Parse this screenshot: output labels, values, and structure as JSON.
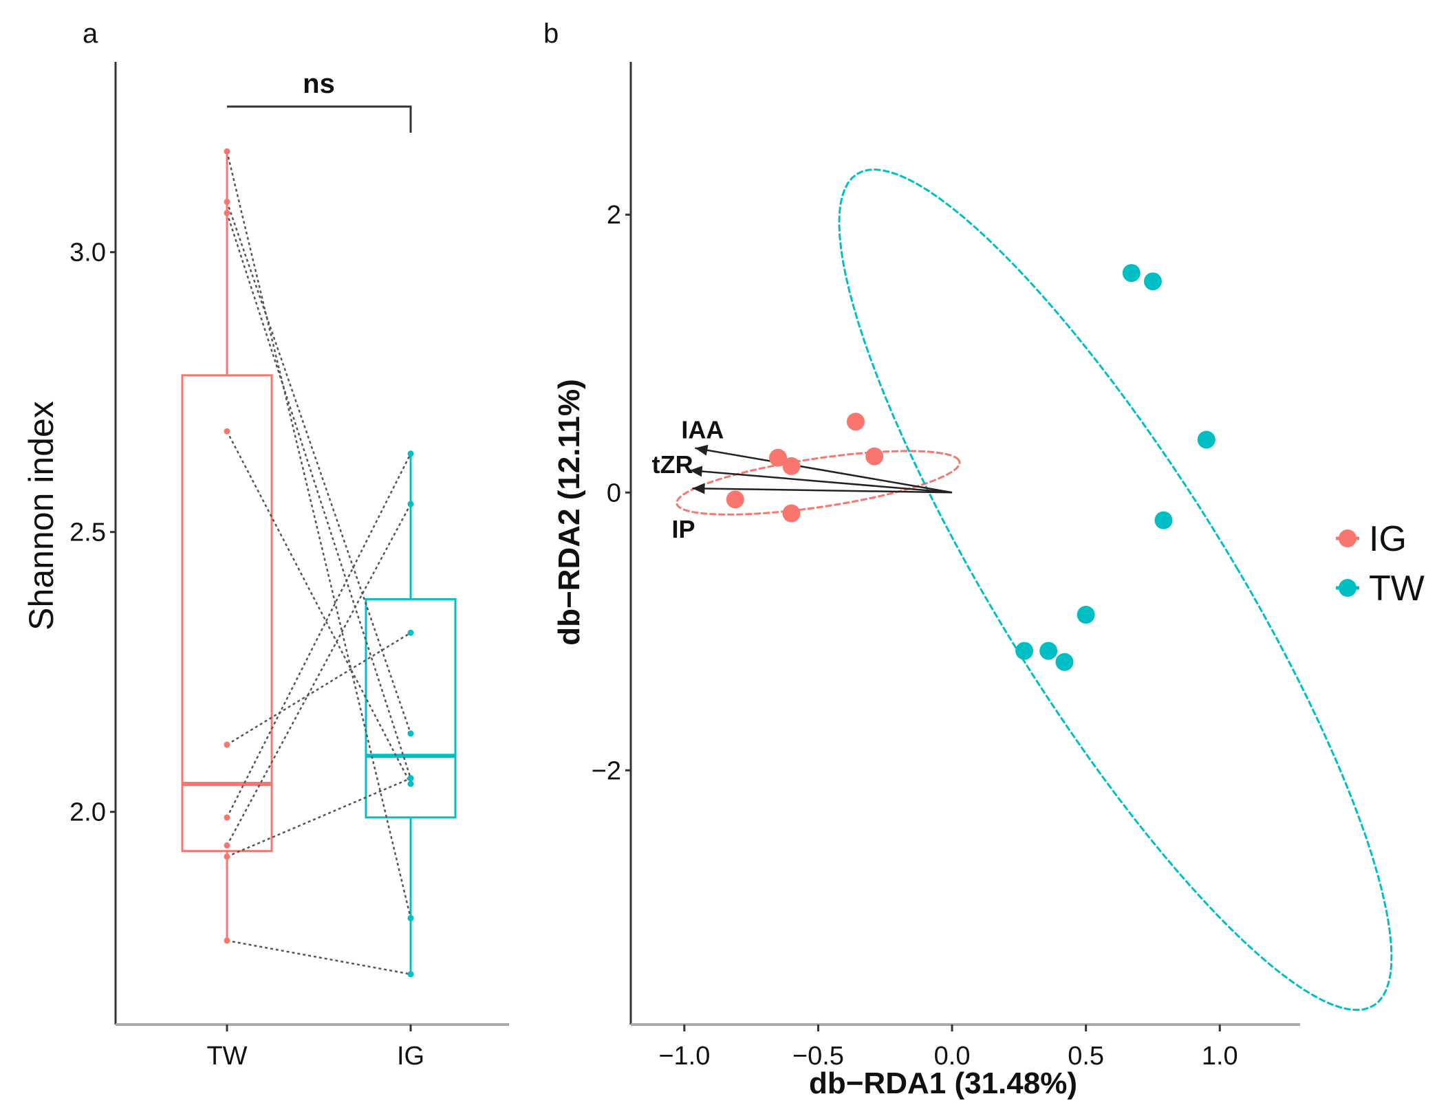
{
  "chart_data": [
    {
      "panel": "a",
      "type": "box",
      "title": "",
      "xlabel": "",
      "ylabel": "Shannon index",
      "categories": [
        "TW",
        "IG"
      ],
      "ylim": [
        1.62,
        3.34
      ],
      "yticks": [
        2.0,
        2.5,
        3.0
      ],
      "ytick_labels": [
        "2.0",
        "2.5",
        "3.0"
      ],
      "boxes": [
        {
          "group": "TW",
          "color": "#F8766D",
          "q1": 1.93,
          "median": 2.05,
          "q3": 2.78,
          "whisker_low": 1.77,
          "whisker_high": 3.18
        },
        {
          "group": "IG",
          "color": "#00BFC4",
          "q1": 1.99,
          "median": 2.1,
          "q3": 2.38,
          "whisker_low": 1.71,
          "whisker_high": 2.64
        }
      ],
      "paired_points": [
        {
          "TW": 3.18,
          "IG": 1.81
        },
        {
          "TW": 3.09,
          "IG": 2.14
        },
        {
          "TW": 3.07,
          "IG": 2.06
        },
        {
          "TW": 2.68,
          "IG": 2.05
        },
        {
          "TW": 2.12,
          "IG": 2.32
        },
        {
          "TW": 1.99,
          "IG": 2.64
        },
        {
          "TW": 1.94,
          "IG": 2.55
        },
        {
          "TW": 1.92,
          "IG": 2.06
        },
        {
          "TW": 1.77,
          "IG": 1.71
        }
      ],
      "significance": {
        "label": "ns",
        "between": [
          "TW",
          "IG"
        ]
      }
    },
    {
      "panel": "b",
      "type": "scatter",
      "title": "",
      "xlabel": "db−RDA1 (31.48%)",
      "ylabel": "db−RDA2 (12.11%)",
      "xlim": [
        -1.2,
        1.3
      ],
      "ylim": [
        -3.83,
        3.1
      ],
      "xticks": [
        -1.0,
        -0.5,
        0.0,
        0.5,
        1.0
      ],
      "xtick_labels": [
        "−1.0",
        "−0.5",
        "0.0",
        "0.5",
        "1.0"
      ],
      "yticks": [
        -2,
        0,
        2
      ],
      "ytick_labels": [
        "−2",
        "0",
        "2"
      ],
      "series": [
        {
          "name": "IG",
          "color": "#F8766D",
          "points": [
            [
              -0.36,
              0.51
            ],
            [
              -0.29,
              0.26
            ],
            [
              -0.65,
              0.25
            ],
            [
              -0.6,
              0.19
            ],
            [
              -0.81,
              -0.05
            ],
            [
              -0.6,
              -0.15
            ]
          ],
          "ellipse": {
            "cx": -0.5,
            "cy": 0.07,
            "rx": 0.55,
            "ry": 0.17,
            "angle_deg": 17
          }
        },
        {
          "name": "TW",
          "color": "#00BFC4",
          "points": [
            [
              0.67,
              1.58
            ],
            [
              0.75,
              1.52
            ],
            [
              0.95,
              0.38
            ],
            [
              0.79,
              -0.2
            ],
            [
              0.5,
              -0.88
            ],
            [
              0.27,
              -1.14
            ],
            [
              0.36,
              -1.14
            ],
            [
              0.42,
              -1.22
            ]
          ],
          "ellipse": {
            "cx": 0.61,
            "cy": -0.7,
            "rx": 0.48,
            "ry": 3.16,
            "angle_deg": 17
          }
        }
      ],
      "arrows": [
        {
          "label": "IAA",
          "x": -0.96,
          "y": 0.32
        },
        {
          "label": "tZR",
          "x": -0.98,
          "y": 0.16
        },
        {
          "label": "IP",
          "x": -0.97,
          "y": 0.03
        }
      ],
      "legend": {
        "position": "right",
        "entries": [
          "IG",
          "TW"
        ]
      }
    }
  ]
}
